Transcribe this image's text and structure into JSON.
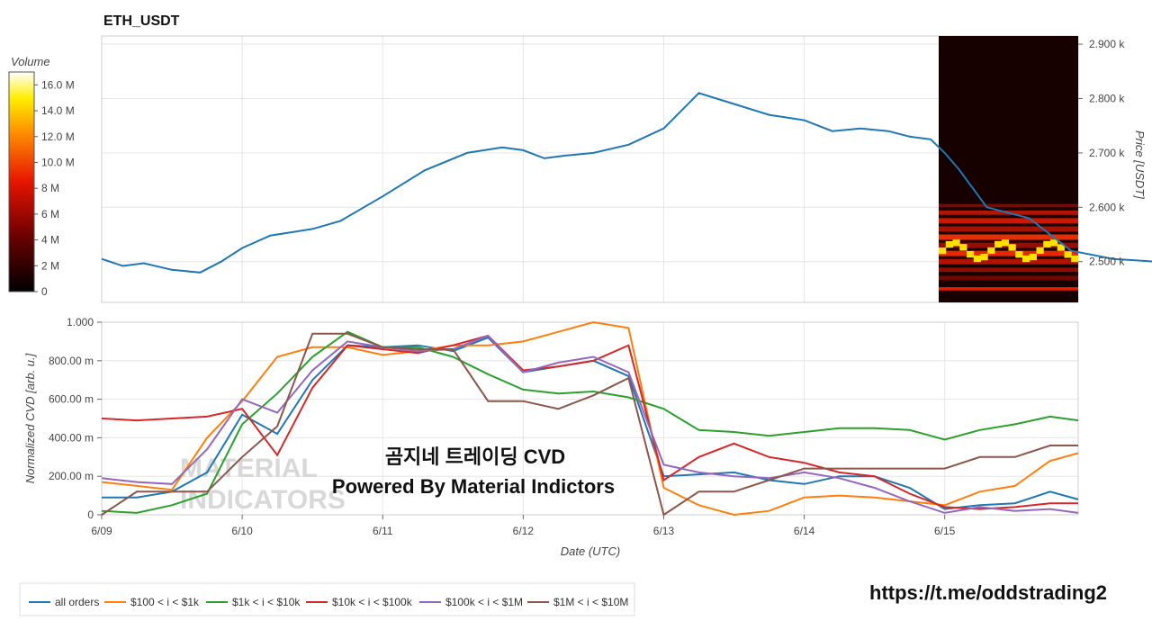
{
  "title": "ETH_USDT",
  "colorbar": {
    "label": "Volume",
    "ticks": [
      "16.0 M",
      "14.0 M",
      "12.0 M",
      "10.0 M",
      "8 M",
      "6 M",
      "4 M",
      "2 M",
      "0"
    ],
    "values": [
      16,
      14,
      12,
      10,
      8,
      6,
      4,
      2,
      0
    ],
    "max": 17
  },
  "colors": {
    "price": "#1f77b4",
    "all_orders": "#1f77b4",
    "s100_1k": "#ff7f0e",
    "s1k_10k": "#2ca02c",
    "s10k_100k": "#d62728",
    "s100k_1m": "#9467bd",
    "s1m_10m": "#8c564b"
  },
  "overlay": {
    "line1": "곰지네 트레이딩 CVD",
    "line2": "Powered By Material Indictors",
    "watermark1": "MATERIAL",
    "watermark2": "INDICATORS",
    "link": "https://t.me/oddstrading2"
  },
  "chart_data": [
    {
      "type": "line",
      "name": "price",
      "ylabel": "Price [USDT]",
      "ylim": [
        2425,
        2915
      ],
      "yticks": [
        2500,
        2600,
        2700,
        2800,
        2900
      ],
      "ytick_labels": [
        "2.500 k",
        "2.600 k",
        "2.700 k",
        "2.800 k",
        "2.900 k"
      ],
      "x": [
        0,
        0.15,
        0.3,
        0.5,
        0.7,
        0.85,
        1.0,
        1.2,
        1.5,
        1.7,
        2.0,
        2.3,
        2.6,
        2.85,
        3.0,
        3.15,
        3.3,
        3.5,
        3.75,
        4.0,
        4.25,
        4.5,
        4.75,
        5.0,
        5.2,
        5.4,
        5.6,
        5.75,
        5.9,
        6.0,
        6.1,
        6.3,
        6.6,
        6.9,
        7.2,
        7.5,
        7.8,
        8.0,
        8.25,
        8.5,
        8.75,
        9.0,
        9.15,
        9.3,
        9.5,
        9.8,
        10.0,
        10.25,
        10.5,
        10.75,
        11.0,
        11.3,
        11.6,
        11.8,
        12.0,
        12.2,
        12.5,
        12.75,
        13.0,
        13.25,
        13.5,
        13.8
      ],
      "y": [
        2505,
        2492,
        2497,
        2485,
        2480,
        2500,
        2525,
        2548,
        2560,
        2575,
        2620,
        2668,
        2700,
        2710,
        2705,
        2690,
        2695,
        2700,
        2715,
        2745,
        2810,
        2790,
        2770,
        2760,
        2740,
        2745,
        2740,
        2730,
        2725,
        2700,
        2670,
        2600,
        2580,
        2520,
        2505,
        2500,
        2485,
        2480,
        2505,
        2510,
        2505,
        2520,
        2530,
        2525,
        2540,
        2520,
        2525,
        2510,
        2505,
        2515,
        2500,
        2505,
        2485,
        2495,
        2510,
        2518,
        2510,
        2520,
        2525,
        2515,
        2498,
        2518
      ]
    },
    {
      "type": "line",
      "name": "cvd",
      "xlabel": "Date (UTC)",
      "ylabel": "Normalized CVD [arb. u.]",
      "ylim": [
        0,
        1
      ],
      "yticks": [
        0,
        0.2,
        0.4,
        0.6,
        0.8,
        1.0
      ],
      "ytick_labels": [
        "0",
        "200.00 m",
        "400.00 m",
        "600.00 m",
        "800.00 m",
        "1.000"
      ],
      "xlim": [
        0,
        6.95
      ],
      "xticks": [
        0,
        1,
        2,
        3,
        4,
        5,
        6
      ],
      "xtick_labels": [
        "6/09",
        "6/10",
        "6/11",
        "6/12",
        "6/13",
        "6/14",
        "6/15"
      ],
      "x": [
        0,
        0.25,
        0.5,
        0.75,
        1.0,
        1.25,
        1.5,
        1.75,
        2.0,
        2.25,
        2.5,
        2.75,
        3.0,
        3.25,
        3.5,
        3.75,
        4.0,
        4.25,
        4.5,
        4.75,
        5.0,
        5.25,
        5.5,
        5.75,
        6.0,
        6.25,
        6.5,
        6.75,
        6.95
      ],
      "series": [
        {
          "name": "all orders",
          "key": "all_orders",
          "values": [
            0.09,
            0.09,
            0.12,
            0.22,
            0.52,
            0.42,
            0.7,
            0.88,
            0.87,
            0.88,
            0.85,
            0.92,
            0.74,
            0.77,
            0.8,
            0.72,
            0.2,
            0.21,
            0.22,
            0.18,
            0.16,
            0.2,
            0.2,
            0.14,
            0.03,
            0.05,
            0.06,
            0.12,
            0.08
          ]
        },
        {
          "name": "$100 < i < $1k",
          "key": "s100_1k",
          "values": [
            0.17,
            0.15,
            0.13,
            0.4,
            0.59,
            0.82,
            0.87,
            0.87,
            0.83,
            0.85,
            0.88,
            0.88,
            0.9,
            0.95,
            1.0,
            0.97,
            0.14,
            0.05,
            0.0,
            0.02,
            0.09,
            0.1,
            0.09,
            0.07,
            0.05,
            0.12,
            0.15,
            0.28,
            0.32
          ]
        },
        {
          "name": "$1k < i < $10k",
          "key": "s1k_10k",
          "values": [
            0.02,
            0.01,
            0.05,
            0.11,
            0.47,
            0.63,
            0.82,
            0.95,
            0.87,
            0.87,
            0.82,
            0.73,
            0.65,
            0.63,
            0.64,
            0.61,
            0.55,
            0.44,
            0.43,
            0.41,
            0.43,
            0.45,
            0.45,
            0.44,
            0.39,
            0.44,
            0.47,
            0.51,
            0.49
          ]
        },
        {
          "name": "$10k < i < $100k",
          "key": "s10k_100k",
          "values": [
            0.5,
            0.49,
            0.5,
            0.51,
            0.55,
            0.31,
            0.66,
            0.88,
            0.86,
            0.84,
            0.88,
            0.93,
            0.75,
            0.77,
            0.8,
            0.88,
            0.18,
            0.3,
            0.37,
            0.3,
            0.27,
            0.22,
            0.2,
            0.11,
            0.04,
            0.03,
            0.04,
            0.06,
            0.06
          ]
        },
        {
          "name": "$100k < i < $1M",
          "key": "s100k_1m",
          "values": [
            0.19,
            0.17,
            0.16,
            0.34,
            0.6,
            0.53,
            0.75,
            0.9,
            0.87,
            0.85,
            0.86,
            0.93,
            0.74,
            0.79,
            0.82,
            0.74,
            0.26,
            0.22,
            0.2,
            0.19,
            0.22,
            0.19,
            0.14,
            0.07,
            0.01,
            0.04,
            0.02,
            0.03,
            0.01
          ]
        },
        {
          "name": "$1M < i < $10M",
          "key": "s1m_10m",
          "values": [
            0.0,
            0.12,
            0.12,
            0.12,
            0.3,
            0.46,
            0.94,
            0.94,
            0.87,
            0.86,
            0.86,
            0.59,
            0.59,
            0.55,
            0.62,
            0.71,
            0.0,
            0.12,
            0.12,
            0.18,
            0.24,
            0.24,
            0.24,
            0.24,
            0.24,
            0.3,
            0.3,
            0.36,
            0.36
          ]
        }
      ]
    }
  ]
}
